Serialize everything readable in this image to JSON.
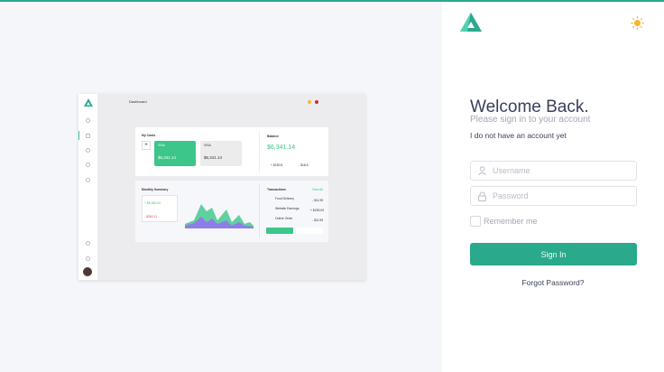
{
  "preview": {
    "header_title": "Dashboard",
    "cards_title": "My Cards",
    "card_brand": "VISA",
    "card_amount": "$6,341.14",
    "balance_title": "Balance",
    "balance_amount": "$6,341.14",
    "income": "+ $250.5",
    "expense": "- $18.8",
    "summary_title": "Monthly Summary",
    "summary_income": "+ $5,350.00",
    "summary_expense": "- $350.11",
    "transactions_title": "Transactions",
    "view_all": "View All",
    "transactions": [
      {
        "name": "Food Delivery",
        "amount": "- $11.99"
      },
      {
        "name": "Website Earnings",
        "amount": "+ $250.00"
      },
      {
        "name": "Online Order",
        "amount": "- $11.99"
      }
    ],
    "colors": {
      "green": "#3cc68a",
      "purple": "#8f7de8"
    }
  },
  "login": {
    "title": "Welcome Back.",
    "subtitle": "Please sign in to your account",
    "no_account": "I do not have an account yet",
    "username_placeholder": "Username",
    "password_placeholder": "Password",
    "remember": "Remember me",
    "sign_in": "Sign In",
    "forgot": "Forgot Password?",
    "brand_color": "#2aa98b"
  },
  "icons": {
    "theme": "sun-icon",
    "username": "user-icon",
    "password": "lock-icon",
    "logo": "triangle-logo"
  }
}
